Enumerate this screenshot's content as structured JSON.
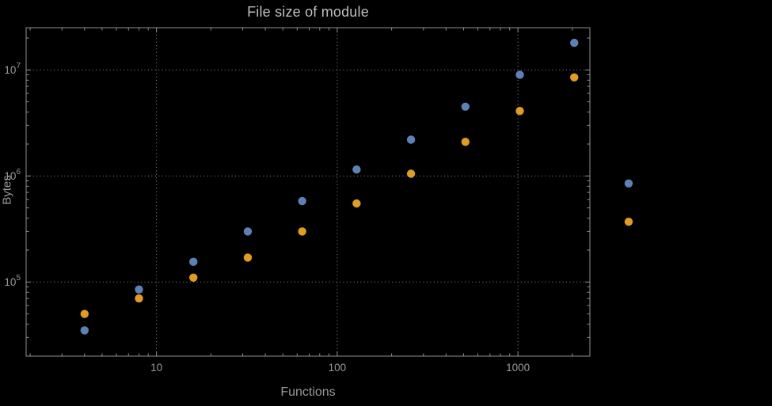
{
  "chart_data": {
    "type": "scatter",
    "title": "File size of module",
    "xlabel": "Functions",
    "ylabel": "Bytes",
    "x_scale": "log",
    "y_scale": "log",
    "xlim": [
      1.9,
      2500
    ],
    "ylim": [
      20000,
      25000000
    ],
    "grid": "dotted-at-decades",
    "legend": "none",
    "x_ticks": [
      {
        "value": 10,
        "label": "10"
      },
      {
        "value": 100,
        "label": "100"
      },
      {
        "value": 1000,
        "label": "1000"
      }
    ],
    "y_ticks": [
      {
        "value": 100000,
        "label": "10^5"
      },
      {
        "value": 1000000,
        "label": "10^6"
      },
      {
        "value": 10000000,
        "label": "10^7"
      }
    ],
    "x": [
      4,
      8,
      16,
      32,
      64,
      128,
      256,
      512,
      1024,
      2048,
      4096
    ],
    "series": [
      {
        "name": "series-1-blue",
        "color": "#5E81B5",
        "values": [
          35000,
          85000,
          155000,
          300000,
          580000,
          1150000,
          2200000,
          4500000,
          9000000,
          18000000,
          850000
        ]
      },
      {
        "name": "series-2-orange",
        "color": "#E19C24",
        "values": [
          50000,
          70000,
          110000,
          170000,
          300000,
          550000,
          1050000,
          2100000,
          4100000,
          8500000,
          370000
        ]
      }
    ],
    "marker": {
      "shape": "circle",
      "radius_px": 5.2
    }
  }
}
